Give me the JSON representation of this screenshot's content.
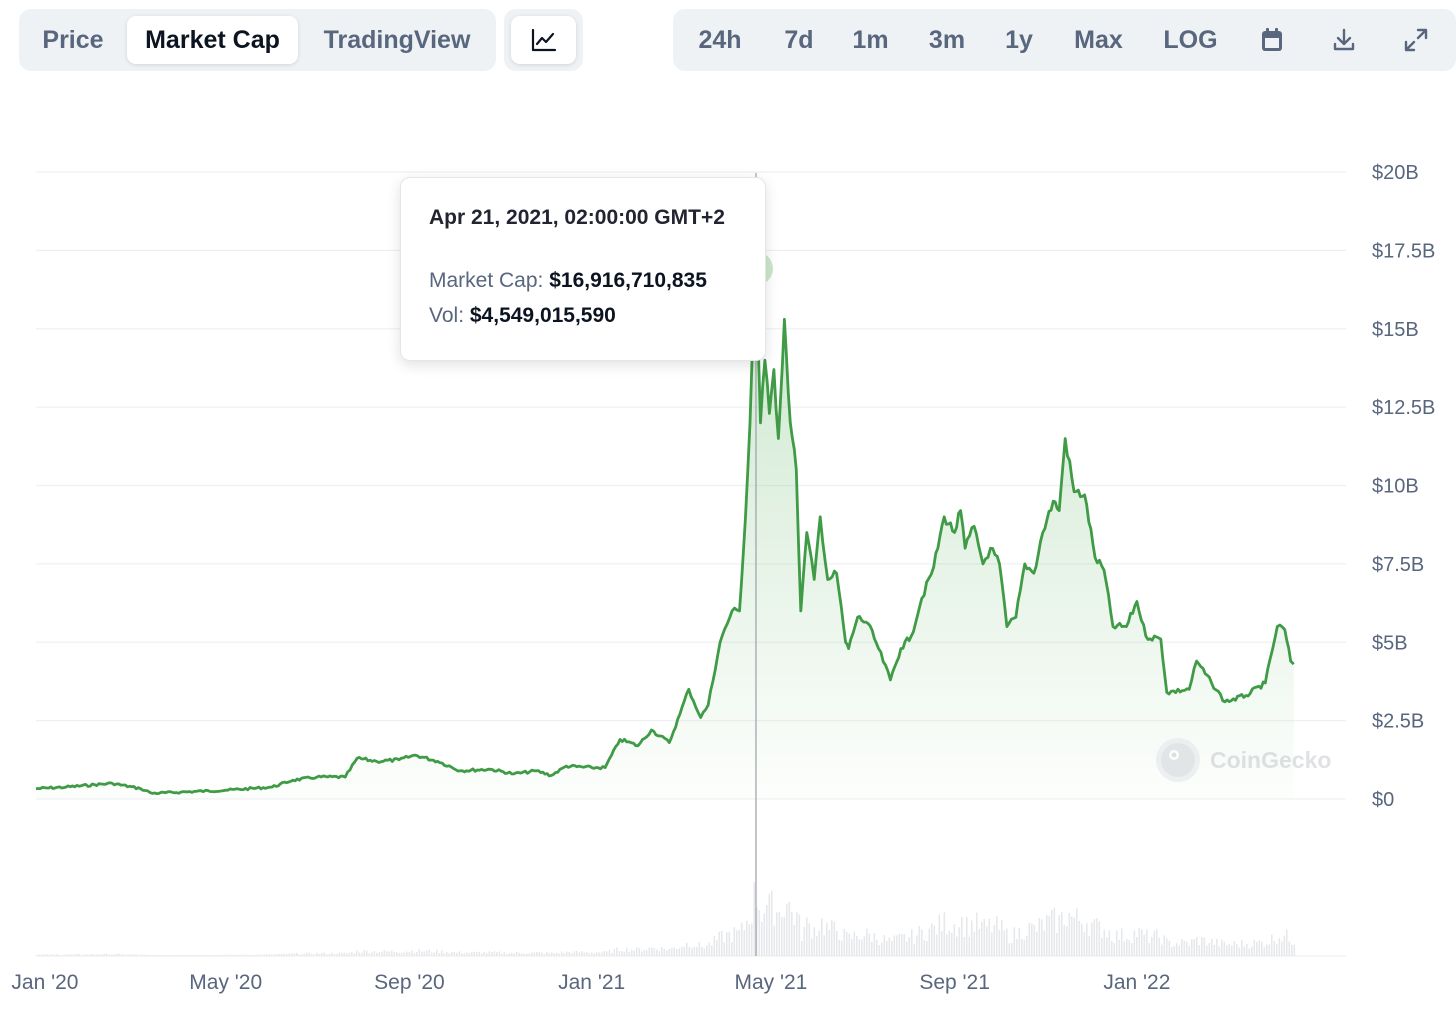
{
  "tabs": [
    {
      "label": "Price",
      "active": false
    },
    {
      "label": "Market Cap",
      "active": true
    },
    {
      "label": "TradingView",
      "active": false
    }
  ],
  "chart_type_icon": "line-chart-icon",
  "ranges": [
    "24h",
    "7d",
    "1m",
    "3m",
    "1y",
    "Max",
    "LOG"
  ],
  "toolbar_icons": [
    "calendar-icon",
    "download-icon",
    "fullscreen-icon"
  ],
  "tooltip": {
    "date": "Apr 21, 2021, 02:00:00 GMT+2",
    "market_cap_label": "Market Cap:",
    "market_cap_value": "$16,916,710,835",
    "vol_label": "Vol:",
    "vol_value": "$4,549,015,590"
  },
  "watermark": "CoinGecko",
  "colors": {
    "line": "#3f9b45",
    "accent_fill": "#8dc98f",
    "grid": "#eef0f3",
    "text_muted": "#58667e"
  },
  "chart_data": {
    "type": "area",
    "title": "",
    "xlabel": "",
    "ylabel": "",
    "y_unit": "USD",
    "x_start": "2019-12-26",
    "x_end": "2022-05-21",
    "ylim": [
      0,
      20000000000
    ],
    "y_ticks": [
      "$0",
      "$2.5B",
      "$5B",
      "$7.5B",
      "$10B",
      "$12.5B",
      "$15B",
      "$17.5B",
      "$20B"
    ],
    "x_ticks": [
      {
        "date": "2020-01-01",
        "label": "Jan '20"
      },
      {
        "date": "2020-05-01",
        "label": "May '20"
      },
      {
        "date": "2020-09-01",
        "label": "Sep '20"
      },
      {
        "date": "2021-01-01",
        "label": "Jan '21"
      },
      {
        "date": "2021-05-01",
        "label": "May '21"
      },
      {
        "date": "2021-09-01",
        "label": "Sep '21"
      },
      {
        "date": "2022-01-01",
        "label": "Jan '22"
      }
    ],
    "grid": true,
    "highlight": {
      "date": "2021-04-21",
      "value": 16916710835
    },
    "series": [
      {
        "name": "Market Cap",
        "points": [
          [
            "2019-12-26",
            0.33
          ],
          [
            "2020-01-15",
            0.38
          ],
          [
            "2020-02-15",
            0.5
          ],
          [
            "2020-03-05",
            0.33
          ],
          [
            "2020-03-13",
            0.18
          ],
          [
            "2020-04-01",
            0.22
          ],
          [
            "2020-05-01",
            0.28
          ],
          [
            "2020-06-01",
            0.38
          ],
          [
            "2020-06-15",
            0.6
          ],
          [
            "2020-07-01",
            0.7
          ],
          [
            "2020-07-20",
            0.7
          ],
          [
            "2020-07-28",
            1.3
          ],
          [
            "2020-08-10",
            1.2
          ],
          [
            "2020-08-25",
            1.25
          ],
          [
            "2020-09-05",
            1.4
          ],
          [
            "2020-09-20",
            1.2
          ],
          [
            "2020-10-05",
            0.9
          ],
          [
            "2020-10-25",
            0.95
          ],
          [
            "2020-11-10",
            0.8
          ],
          [
            "2020-11-25",
            0.9
          ],
          [
            "2020-12-05",
            0.75
          ],
          [
            "2020-12-15",
            1.05
          ],
          [
            "2021-01-01",
            1.0
          ],
          [
            "2021-01-10",
            1.0
          ],
          [
            "2021-01-20",
            1.9
          ],
          [
            "2021-02-01",
            1.7
          ],
          [
            "2021-02-10",
            2.2
          ],
          [
            "2021-02-22",
            1.8
          ],
          [
            "2021-03-01",
            2.7
          ],
          [
            "2021-03-07",
            3.5
          ],
          [
            "2021-03-15",
            2.6
          ],
          [
            "2021-03-20",
            3.0
          ],
          [
            "2021-03-28",
            5.0
          ],
          [
            "2021-04-05",
            6.0
          ],
          [
            "2021-04-10",
            6.0
          ],
          [
            "2021-04-14",
            9.0
          ],
          [
            "2021-04-17",
            12.0
          ],
          [
            "2021-04-19",
            15.0
          ],
          [
            "2021-04-21",
            16.92
          ],
          [
            "2021-04-24",
            12.0
          ],
          [
            "2021-04-27",
            14.0
          ],
          [
            "2021-04-30",
            12.3
          ],
          [
            "2021-05-03",
            13.7
          ],
          [
            "2021-05-06",
            11.5
          ],
          [
            "2021-05-10",
            15.3
          ],
          [
            "2021-05-14",
            12.0
          ],
          [
            "2021-05-18",
            10.5
          ],
          [
            "2021-05-21",
            6.0
          ],
          [
            "2021-05-25",
            8.5
          ],
          [
            "2021-05-30",
            7.0
          ],
          [
            "2021-06-03",
            9.0
          ],
          [
            "2021-06-08",
            7.0
          ],
          [
            "2021-06-14",
            7.2
          ],
          [
            "2021-06-20",
            5.0
          ],
          [
            "2021-06-22",
            4.8
          ],
          [
            "2021-06-28",
            5.8
          ],
          [
            "2021-07-05",
            5.6
          ],
          [
            "2021-07-12",
            4.8
          ],
          [
            "2021-07-20",
            3.8
          ],
          [
            "2021-07-27",
            4.8
          ],
          [
            "2021-08-03",
            5.2
          ],
          [
            "2021-08-10",
            6.4
          ],
          [
            "2021-08-18",
            7.4
          ],
          [
            "2021-08-25",
            9.0
          ],
          [
            "2021-09-01",
            8.5
          ],
          [
            "2021-09-05",
            9.2
          ],
          [
            "2021-09-08",
            8.0
          ],
          [
            "2021-09-14",
            8.7
          ],
          [
            "2021-09-20",
            7.5
          ],
          [
            "2021-09-25",
            8.0
          ],
          [
            "2021-10-01",
            7.5
          ],
          [
            "2021-10-06",
            5.5
          ],
          [
            "2021-10-12",
            5.8
          ],
          [
            "2021-10-18",
            7.5
          ],
          [
            "2021-10-24",
            7.2
          ],
          [
            "2021-10-30",
            8.5
          ],
          [
            "2021-11-06",
            9.5
          ],
          [
            "2021-11-10",
            9.2
          ],
          [
            "2021-11-14",
            11.5
          ],
          [
            "2021-11-20",
            9.8
          ],
          [
            "2021-11-27",
            9.7
          ],
          [
            "2021-12-04",
            7.7
          ],
          [
            "2021-12-10",
            7.3
          ],
          [
            "2021-12-16",
            5.5
          ],
          [
            "2021-12-25",
            5.5
          ],
          [
            "2022-01-01",
            6.3
          ],
          [
            "2022-01-07",
            5.2
          ],
          [
            "2022-01-17",
            5.1
          ],
          [
            "2022-01-21",
            3.4
          ],
          [
            "2022-02-05",
            3.5
          ],
          [
            "2022-02-10",
            4.4
          ],
          [
            "2022-02-20",
            3.7
          ],
          [
            "2022-03-01",
            3.1
          ],
          [
            "2022-03-15",
            3.3
          ],
          [
            "2022-03-28",
            3.7
          ],
          [
            "2022-04-05",
            5.5
          ],
          [
            "2022-04-10",
            5.4
          ],
          [
            "2022-04-14",
            4.4
          ],
          [
            "2022-04-16",
            4.3
          ]
        ]
      }
    ]
  }
}
